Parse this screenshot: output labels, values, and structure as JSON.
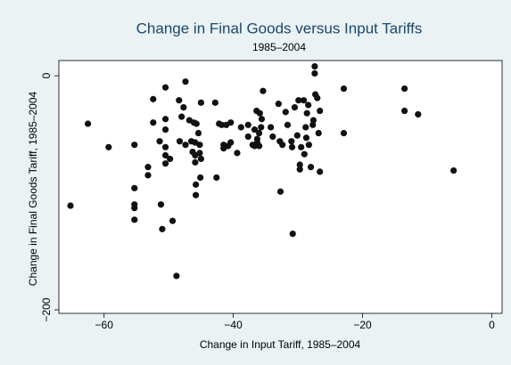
{
  "chart_data": {
    "type": "scatter",
    "title": "Change in Final Goods versus Input Tariffs",
    "subtitle": "1985–2004",
    "x_label": "Change in Input Tariff, 1985–2004",
    "y_label": "Change in Final Goods Tariff, 1985–2004",
    "color": "#111111",
    "grid": false,
    "xlim": [
      -67,
      1.6
    ],
    "ylim": [
      -203,
      13
    ],
    "xticks": [
      {
        "value": -60,
        "label": "−60"
      },
      {
        "value": -40,
        "label": "−40"
      },
      {
        "value": -20,
        "label": "−20"
      },
      0
    ],
    "yticks": [
      {
        "value": -200,
        "label": "−200"
      },
      0
    ],
    "x": [
      -65.2,
      -62.5,
      -59.3,
      -55.3,
      -55.3,
      -55.3,
      -55.3,
      -55.3,
      -53.2,
      -53.2,
      -52.4,
      -52.4,
      -51.4,
      -51.2,
      -51.0,
      -50.5,
      -50.5,
      -50.5,
      -50.5,
      -50.5,
      -50.5,
      -49.8,
      -49.4,
      -48.8,
      -48.4,
      -48.3,
      -48.0,
      -47.7,
      -47.4,
      -47.4,
      -46.8,
      -46.5,
      -46.3,
      -46.1,
      -45.9,
      -45.9,
      -45.9,
      -45.8,
      -45.8,
      -45.7,
      -45.4,
      -45.2,
      -45.2,
      -45.1,
      -45.0,
      -45.0,
      -42.8,
      -42.6,
      -42.2,
      -41.8,
      -41.5,
      -41.5,
      -41.1,
      -40.8,
      -40.4,
      -40.4,
      -39.4,
      -38.8,
      -37.7,
      -37.7,
      -37.0,
      -36.7,
      -36.7,
      -36.4,
      -36.3,
      -36.3,
      -36.0,
      -36.0,
      -35.9,
      -35.7,
      -35.6,
      -35.4,
      -34.2,
      -33.9,
      -33.0,
      -32.8,
      -32.7,
      -32.4,
      -31.9,
      -31.6,
      -31.0,
      -30.9,
      -30.8,
      -30.5,
      -30.1,
      -29.9,
      -29.7,
      -29.7,
      -29.5,
      -29.1,
      -29.0,
      -28.8,
      -28.7,
      -28.6,
      -28.4,
      -28.3,
      -28.0,
      -27.7,
      -27.6,
      -27.4,
      -27.4,
      -27.3,
      -27.0,
      -26.6,
      -26.6,
      -26.8,
      -22.9,
      -22.9,
      -13.5,
      -13.5,
      -11.4,
      -5.9
    ],
    "values": [
      -111,
      -41,
      -61,
      -59,
      -96,
      -110,
      -113,
      -123,
      -78,
      -85,
      -20,
      -40,
      -56,
      -110,
      -131,
      -10,
      -37,
      -46,
      -61,
      -68,
      -75,
      -71,
      -124,
      -171,
      -21,
      -56,
      -35,
      -27,
      -5,
      -59,
      -38,
      -56,
      -65,
      -40,
      -68,
      -74,
      -57,
      -93,
      -102,
      -41,
      -49,
      -66,
      -59,
      -87,
      -71,
      -23,
      -23,
      -87,
      -41,
      -42,
      -59,
      -62,
      -42,
      -60,
      -57,
      -40,
      -66,
      -44,
      -52,
      -42,
      -59,
      -60,
      -46,
      -30,
      -54,
      -57,
      -49,
      -60,
      -32,
      -44,
      -37,
      -13,
      -44,
      -52,
      -24,
      -56,
      -99,
      -59,
      -31,
      -42,
      -56,
      -61,
      -135,
      -27,
      -51,
      -21,
      -76,
      -80,
      -61,
      -21,
      -67,
      -44,
      -53,
      -32,
      -25,
      -59,
      -78,
      -42,
      -38,
      8,
      2,
      -16,
      -19,
      -30,
      -82,
      -49,
      -11,
      -49,
      -11,
      -30,
      -33,
      -81
    ]
  }
}
